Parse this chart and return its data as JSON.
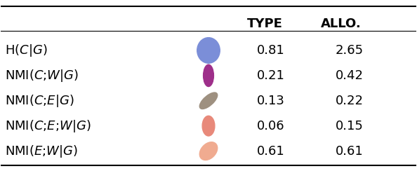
{
  "rows": [
    {
      "label": "H($C|G$)",
      "color": "#7b8ed8",
      "type_val": 0.81,
      "allo_val": 2.65
    },
    {
      "label": "NMI($C$;$W|G$)",
      "color": "#9e2f8a",
      "type_val": 0.21,
      "allo_val": 0.42
    },
    {
      "label": "NMI($C$;$E|G$)",
      "color": "#9e9080",
      "type_val": 0.13,
      "allo_val": 0.22
    },
    {
      "label": "NMI($C$;$E$;$W|G$)",
      "color": "#e8897a",
      "type_val": 0.06,
      "allo_val": 0.15
    },
    {
      "label": "NMI($E$;$W|G$)",
      "color": "#f0ab90",
      "type_val": 0.61,
      "allo_val": 0.61
    }
  ],
  "col_headers": [
    "TYPE",
    "ALLO."
  ],
  "background_color": "#ffffff",
  "text_color": "#000000",
  "header_fontsize": 13,
  "row_fontsize": 13,
  "value_fontsize": 13
}
